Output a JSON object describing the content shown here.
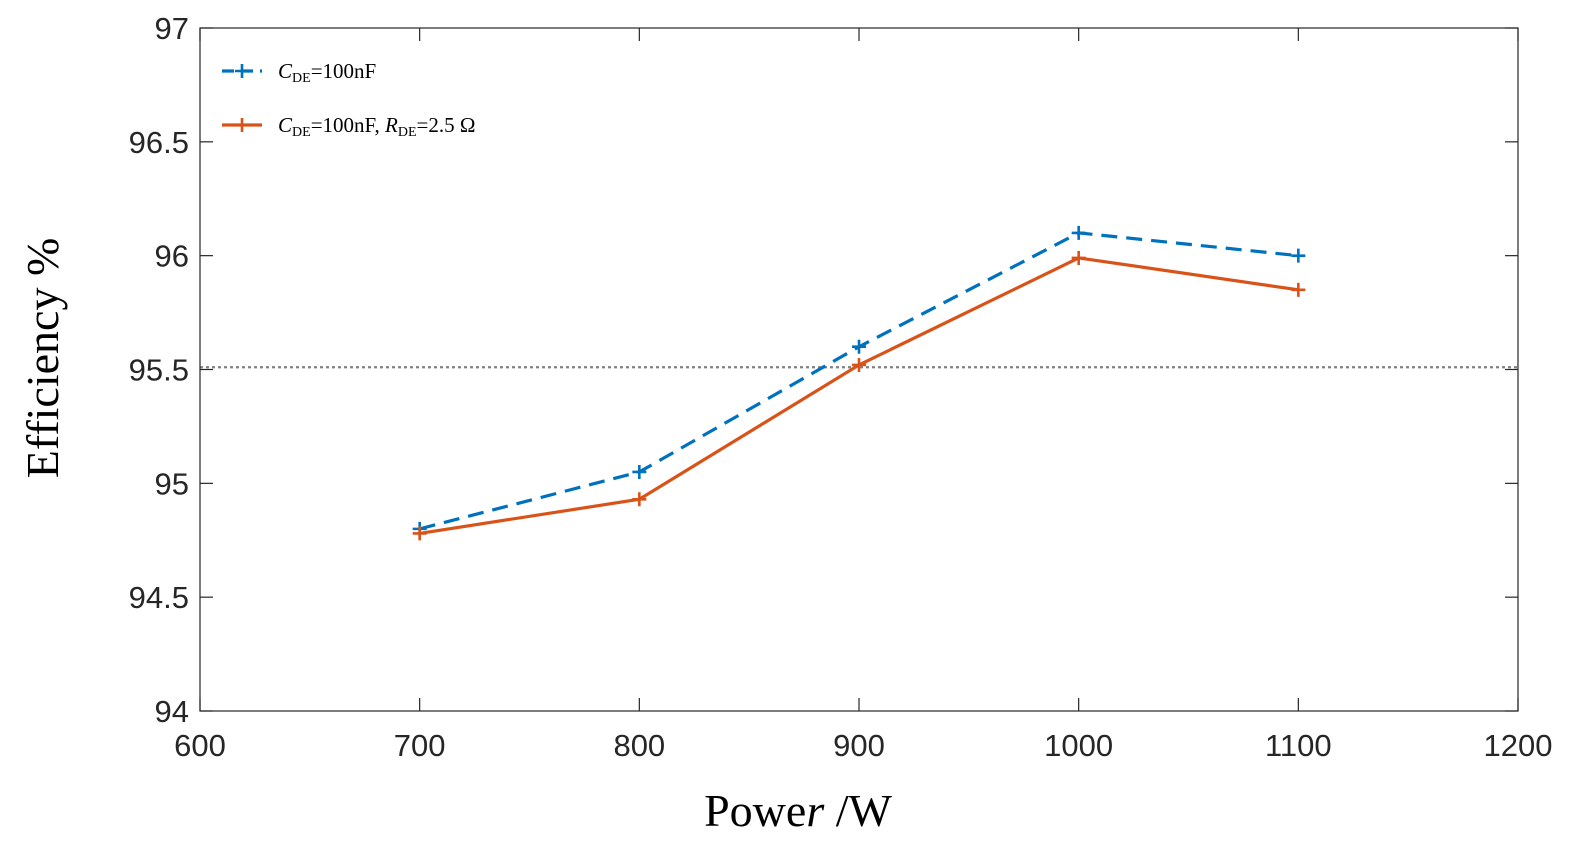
{
  "chart_data": {
    "type": "line",
    "title": "",
    "xlabel": "Power /W",
    "xlabel_parts": {
      "main": "Powe",
      "italic": "r",
      "unit": " /W"
    },
    "ylabel": "Efficiency %",
    "xlim": [
      600,
      1200
    ],
    "ylim": [
      94,
      97
    ],
    "xticks": [
      600,
      700,
      800,
      900,
      1000,
      1100,
      1200
    ],
    "yticks": [
      94,
      94.5,
      95,
      95.5,
      96,
      96.5,
      97
    ],
    "xtick_labels": [
      "600",
      "700",
      "800",
      "900",
      "1000",
      "1100",
      "1200"
    ],
    "ytick_labels": [
      "94",
      "94.5",
      "95",
      "95.5",
      "96",
      "96.5",
      "97"
    ],
    "grid": false,
    "legend_position": "top-left",
    "x": [
      700,
      800,
      900,
      1000,
      1100
    ],
    "series": [
      {
        "name": "CDE=100nF",
        "legend": {
          "sym1": "C",
          "sub1": "DE",
          "text1": "=100nF",
          "sym2": "",
          "sub2": "",
          "text2": ""
        },
        "color": "#0072BD",
        "dash": "dashed",
        "marker": "+",
        "values": [
          94.8,
          95.05,
          95.6,
          96.1,
          96.0
        ]
      },
      {
        "name": "CDE=100nF, RDE=2.5Ω",
        "legend": {
          "sym1": "C",
          "sub1": "DE",
          "text1": "=100nF, ",
          "sym2": "R",
          "sub2": "DE",
          "text2": "=2.5 Ω"
        },
        "color": "#D95319",
        "dash": "solid",
        "marker": "+",
        "values": [
          94.78,
          94.93,
          95.52,
          95.99,
          95.85
        ]
      }
    ],
    "reference_line": {
      "y": 95.51,
      "color": "#808080",
      "style": "dotted"
    }
  }
}
